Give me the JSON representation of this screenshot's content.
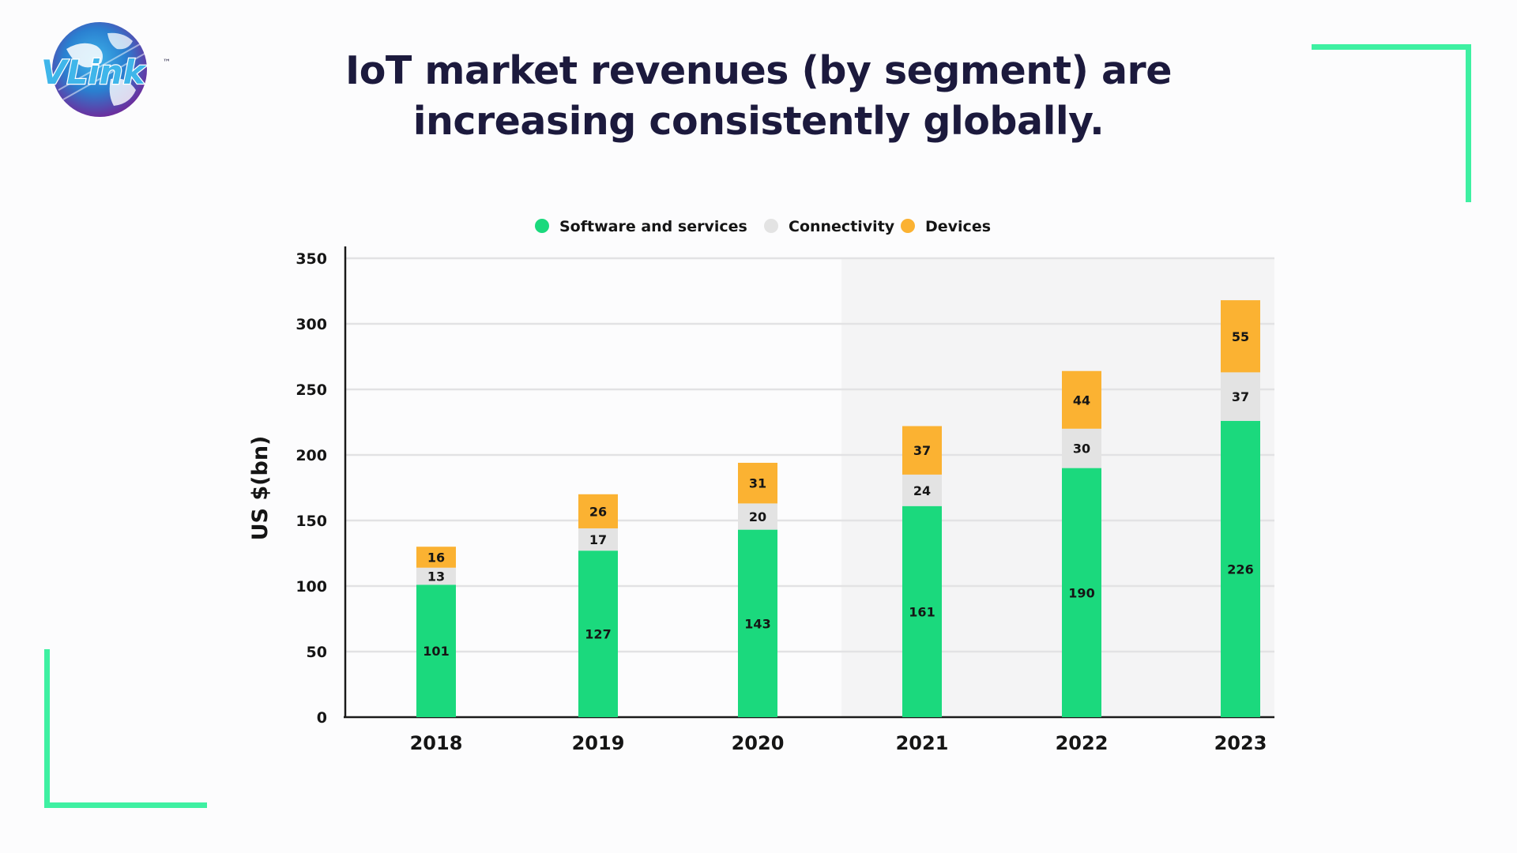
{
  "page": {
    "title_line1": "IoT market revenues (by segment) are",
    "title_line2": "increasing consistently globally.",
    "logo_text": "VLink",
    "logo_tm": "™",
    "accent_color": "#3ef0a2"
  },
  "chart_data": {
    "type": "bar",
    "stacked": true,
    "title": "IoT market revenues (by segment) are increasing consistently globally.",
    "xlabel": "",
    "ylabel": "US $(bn)",
    "ylim": [
      0,
      350
    ],
    "yticks": [
      0,
      50,
      100,
      150,
      200,
      250,
      300,
      350
    ],
    "grid": true,
    "legend_position": "top-center",
    "categories": [
      "2018",
      "2019",
      "2020",
      "2021",
      "2022",
      "2023"
    ],
    "series": [
      {
        "name": "Software and services",
        "color": "#1bd97d",
        "values": [
          101,
          127,
          143,
          161,
          190,
          226
        ]
      },
      {
        "name": "Connectivity",
        "color": "#e3e3e3",
        "values": [
          13,
          17,
          20,
          24,
          30,
          37
        ]
      },
      {
        "name": "Devices",
        "color": "#fbb232",
        "values": [
          16,
          26,
          31,
          37,
          44,
          55
        ]
      }
    ],
    "shaded_region": {
      "from": "2021",
      "to": "2023",
      "color": "#f4f4f5"
    }
  }
}
